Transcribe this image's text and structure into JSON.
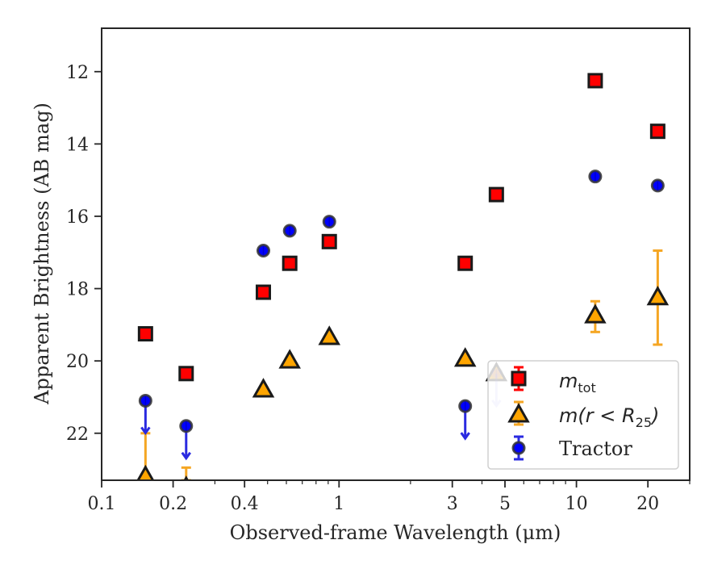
{
  "chart_data": {
    "type": "scatter",
    "xlabel": "Observed-frame Wavelength (μm)",
    "ylabel": "Apparent Brightness (AB mag)",
    "xscale": "log",
    "xlim": [
      0.1,
      30
    ],
    "ylim": [
      23.3,
      10.8
    ],
    "y_inverted": true,
    "x_ticks": [
      0.1,
      0.2,
      0.4,
      1,
      3,
      5,
      10,
      20
    ],
    "x_tick_labels": [
      "0.1",
      "0.2",
      "0.4",
      "1",
      "3",
      "5",
      "10",
      "20"
    ],
    "y_ticks": [
      12,
      14,
      16,
      18,
      20,
      22
    ],
    "y_tick_labels": [
      "12",
      "14",
      "16",
      "18",
      "20",
      "22"
    ],
    "legend_position": "lower-right",
    "series": [
      {
        "name": "m_tot",
        "label_main": "m",
        "label_sub": "tot",
        "marker": "square",
        "color": "#ff0000",
        "edge_color": "#1a1a1a",
        "errorbar_color": "#ff0000",
        "points": [
          {
            "x": 0.153,
            "y": 19.25
          },
          {
            "x": 0.227,
            "y": 20.35
          },
          {
            "x": 0.48,
            "y": 18.1
          },
          {
            "x": 0.62,
            "y": 17.3
          },
          {
            "x": 0.91,
            "y": 16.7
          },
          {
            "x": 3.4,
            "y": 17.3
          },
          {
            "x": 4.6,
            "y": 15.4
          },
          {
            "x": 12.0,
            "y": 12.25
          },
          {
            "x": 22.0,
            "y": 13.65
          }
        ]
      },
      {
        "name": "m(r < R25)",
        "label_main": "m(r < R",
        "label_sub": "25",
        "label_tail": ")",
        "marker": "triangle",
        "color": "#ffa500",
        "edge_color": "#1a1a1a",
        "errorbar_color": "#f5a623",
        "points": [
          {
            "x": 0.153,
            "y": 23.2,
            "yerr_low": 22.0,
            "yerr_high": 23.3
          },
          {
            "x": 0.227,
            "y": 23.5,
            "yerr_low": 22.95,
            "yerr_high": 23.3
          },
          {
            "x": 0.48,
            "y": 20.8
          },
          {
            "x": 0.62,
            "y": 20.0
          },
          {
            "x": 0.91,
            "y": 19.35
          },
          {
            "x": 3.4,
            "y": 19.95
          },
          {
            "x": 4.6,
            "y": 20.35
          },
          {
            "x": 12.0,
            "y": 18.75,
            "yerr_low": 18.35,
            "yerr_high": 19.2
          },
          {
            "x": 22.0,
            "y": 18.25,
            "yerr_low": 16.95,
            "yerr_high": 19.55
          }
        ]
      },
      {
        "name": "Tractor",
        "label_main": "Tractor",
        "marker": "circle",
        "color": "#0000ff",
        "edge_color": "#333333",
        "errorbar_color": "#2a2ae0",
        "points": [
          {
            "x": 0.153,
            "y": 21.1,
            "upper_limit": true
          },
          {
            "x": 0.227,
            "y": 21.8,
            "upper_limit": true
          },
          {
            "x": 0.48,
            "y": 16.95
          },
          {
            "x": 0.62,
            "y": 16.4
          },
          {
            "x": 0.91,
            "y": 16.15
          },
          {
            "x": 3.4,
            "y": 21.25,
            "upper_limit": true
          },
          {
            "x": 4.6,
            "y": 20.35,
            "upper_limit": true,
            "faded": true
          },
          {
            "x": 12.0,
            "y": 14.9
          },
          {
            "x": 22.0,
            "y": 15.15
          }
        ]
      }
    ]
  }
}
